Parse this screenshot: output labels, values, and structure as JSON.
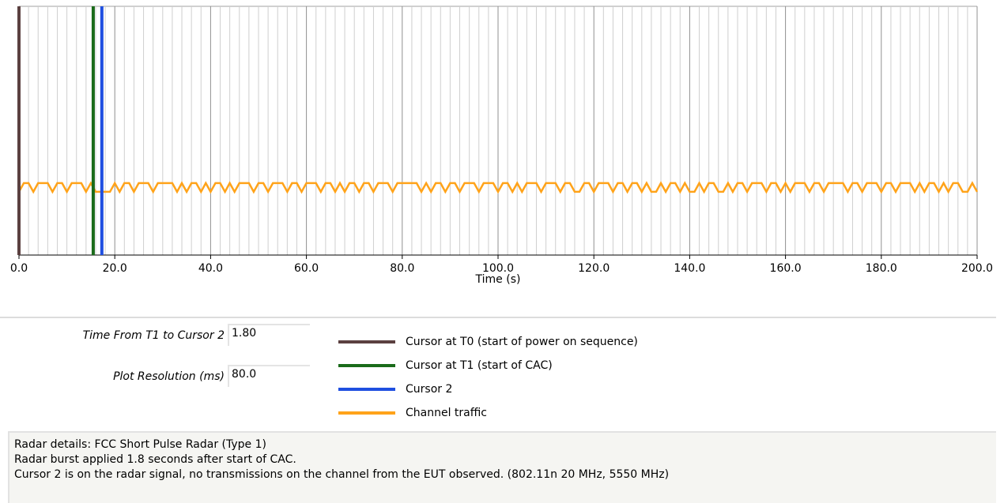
{
  "chart_data": {
    "type": "line",
    "xlabel": "Time (s)",
    "xlim": [
      0,
      200
    ],
    "xticks": [
      {
        "value": 0,
        "label": "0.0"
      },
      {
        "value": 20,
        "label": "20.0"
      },
      {
        "value": 40,
        "label": "40.0"
      },
      {
        "value": 60,
        "label": "60.0"
      },
      {
        "value": 80,
        "label": "80.0"
      },
      {
        "value": 100,
        "label": "100.0"
      },
      {
        "value": 120,
        "label": "120.0"
      },
      {
        "value": 140,
        "label": "140.0"
      },
      {
        "value": 160,
        "label": "160.0"
      },
      {
        "value": 180,
        "label": "180.0"
      },
      {
        "value": 200,
        "label": "200.0"
      }
    ],
    "ylim": [
      -7.3,
      21.4
    ],
    "grid": true,
    "minor_grid_divisions": 10,
    "cursors": [
      {
        "name": "Cursor at T0 (start of power on sequence)",
        "color": "#5b4040",
        "x": 0
      },
      {
        "name": "Cursor at T1 (start of CAC)",
        "color": "#1a6b1a",
        "x": 15.5
      },
      {
        "name": "Cursor 2",
        "color": "#1f4fe0",
        "x": 17.3
      }
    ],
    "series": [
      {
        "name": "Channel traffic",
        "color": "#ffa31a",
        "x": [
          0,
          1,
          2,
          3,
          4,
          5,
          6,
          7,
          8,
          9,
          10,
          11,
          12,
          13,
          14,
          15,
          16,
          17,
          18,
          19,
          20,
          21,
          22,
          23,
          24,
          25,
          26,
          27,
          28,
          29,
          30,
          31,
          32,
          33,
          34,
          35,
          36,
          37,
          38,
          39,
          40,
          41,
          42,
          43,
          44,
          45,
          46,
          47,
          48,
          49,
          50,
          51,
          52,
          53,
          54,
          55,
          56,
          57,
          58,
          59,
          60,
          61,
          62,
          63,
          64,
          65,
          66,
          67,
          68,
          69,
          70,
          71,
          72,
          73,
          74,
          75,
          76,
          77,
          78,
          79,
          80,
          81,
          82,
          83,
          84,
          85,
          86,
          87,
          88,
          89,
          90,
          91,
          92,
          93,
          94,
          95,
          96,
          97,
          98,
          99,
          100,
          101,
          102,
          103,
          104,
          105,
          106,
          107,
          108,
          109,
          110,
          111,
          112,
          113,
          114,
          115,
          116,
          117,
          118,
          119,
          120,
          121,
          122,
          123,
          124,
          125,
          126,
          127,
          128,
          129,
          130,
          131,
          132,
          133,
          134,
          135,
          136,
          137,
          138,
          139,
          140,
          141,
          142,
          143,
          144,
          145,
          146,
          147,
          148,
          149,
          150,
          151,
          152,
          153,
          154,
          155,
          156,
          157,
          158,
          159,
          160,
          161,
          162,
          163,
          164,
          165,
          166,
          167,
          168,
          169,
          170,
          171,
          172,
          173,
          174,
          175,
          176,
          177,
          178,
          179,
          180,
          181,
          182,
          183,
          184,
          185,
          186,
          187,
          188,
          189,
          190,
          191,
          192,
          193,
          194,
          195,
          196,
          197,
          198,
          199,
          200
        ],
        "values": [
          0,
          1,
          1,
          0,
          1,
          1,
          1,
          0,
          1,
          1,
          0,
          1,
          1,
          1,
          0,
          1,
          0,
          0,
          0,
          0,
          1,
          0,
          1,
          1,
          0,
          1,
          1,
          1,
          0,
          1,
          1,
          1,
          1,
          0,
          1,
          0,
          1,
          1,
          0,
          1,
          0,
          1,
          1,
          0,
          1,
          0,
          1,
          1,
          1,
          0,
          1,
          1,
          0,
          1,
          1,
          1,
          0,
          1,
          1,
          0,
          1,
          1,
          1,
          0,
          1,
          1,
          0,
          1,
          0,
          1,
          1,
          0,
          1,
          1,
          0,
          1,
          1,
          1,
          0,
          1,
          1,
          1,
          1,
          1,
          0,
          1,
          0,
          1,
          1,
          0,
          1,
          1,
          0,
          1,
          1,
          1,
          0,
          1,
          1,
          1,
          0,
          1,
          1,
          0,
          1,
          0,
          1,
          1,
          1,
          0,
          1,
          1,
          1,
          0,
          1,
          1,
          0,
          0,
          1,
          1,
          0,
          1,
          1,
          1,
          0,
          1,
          1,
          0,
          1,
          1,
          0,
          1,
          0,
          0,
          1,
          0,
          1,
          1,
          0,
          1,
          0,
          0,
          1,
          0,
          1,
          1,
          0,
          0,
          1,
          0,
          1,
          1,
          0,
          1,
          1,
          1,
          0,
          1,
          1,
          0,
          1,
          0,
          1,
          1,
          1,
          0,
          1,
          1,
          0,
          1,
          1,
          1,
          1,
          0,
          1,
          1,
          0,
          1,
          1,
          1,
          0,
          1,
          1,
          0,
          1,
          1,
          1,
          0,
          1,
          0,
          1,
          1,
          0,
          1,
          0,
          1,
          1,
          0,
          0,
          1,
          0
        ]
      }
    ]
  },
  "fields": [
    {
      "label": "Time From T1 to Cursor 2",
      "value": "1.80"
    },
    {
      "label": "Plot Resolution (ms)",
      "value": "80.0"
    }
  ],
  "notes": [
    "Radar details: FCC Short Pulse Radar (Type 1)",
    "Radar burst applied 1.8 seconds after start of CAC.",
    "Cursor 2 is on the radar signal, no transmissions on the channel from the EUT observed. (802.11n 20 MHz, 5550 MHz)"
  ]
}
